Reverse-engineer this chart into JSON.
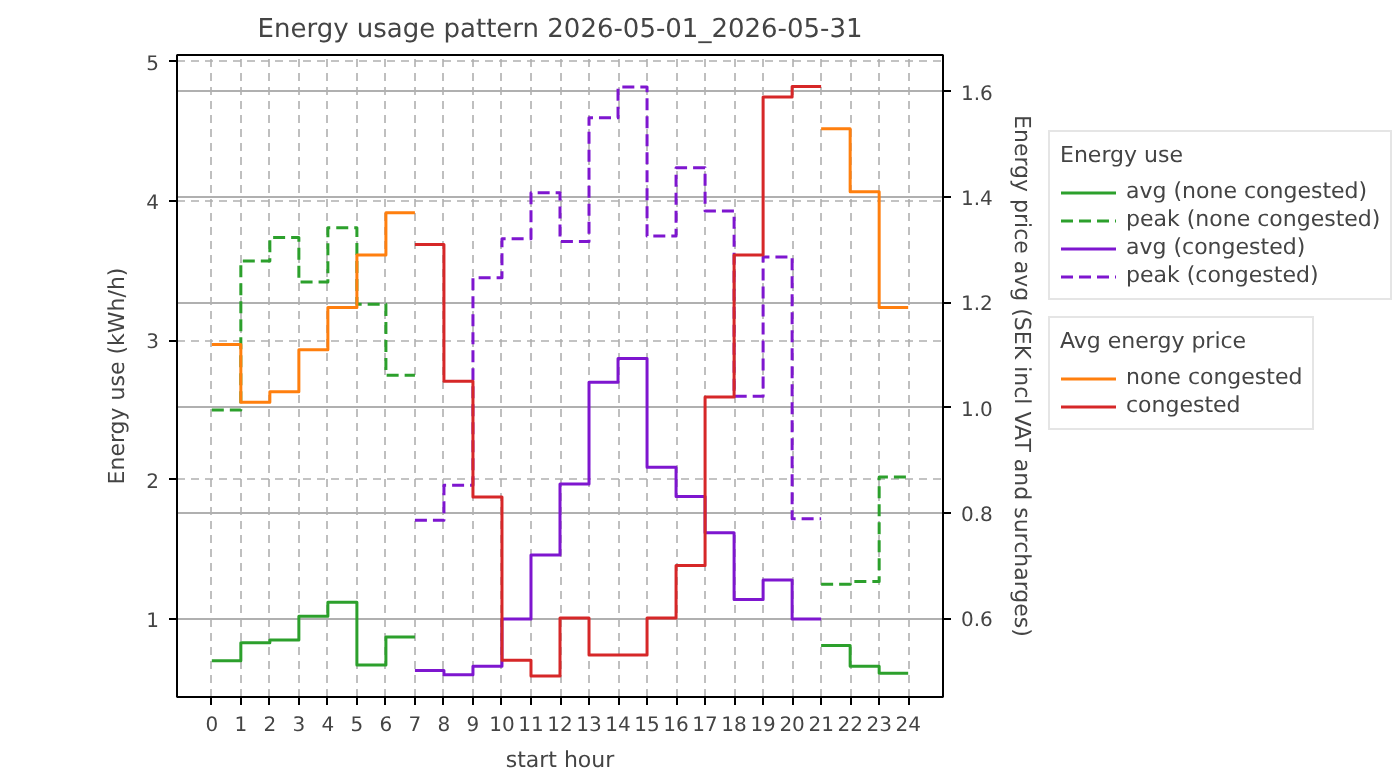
{
  "chart_data": {
    "type": "step",
    "title": "Energy usage pattern 2026-05-01_2026-05-31",
    "xlabel": "start hour",
    "ylabel": "Energy use (kWh/h)",
    "y2label": "Energy price avg (SEK incl VAT and surcharges)",
    "legend_title": [
      "Energy use",
      "Avg energy price"
    ],
    "x": [
      0,
      1,
      2,
      3,
      4,
      5,
      6,
      7,
      8,
      9,
      10,
      11,
      12,
      13,
      14,
      15,
      16,
      17,
      18,
      19,
      20,
      21,
      22,
      23,
      24
    ],
    "series": [
      {
        "name": "avg (none congested)",
        "color": "#2ca02c",
        "line_style": "solid",
        "axis": "y",
        "values": [
          0.7,
          0.83,
          0.85,
          1.02,
          1.12,
          0.67,
          0.87,
          0.87,
          null,
          null,
          null,
          null,
          null,
          null,
          null,
          null,
          null,
          null,
          null,
          null,
          null,
          0.81,
          0.66,
          0.61,
          0.61
        ]
      },
      {
        "name": "peak (none congested)",
        "color": "#2ca02c",
        "line_style": "dashed",
        "axis": "y",
        "values": [
          2.5,
          3.57,
          3.74,
          3.42,
          3.81,
          3.26,
          2.75,
          2.75,
          null,
          null,
          null,
          null,
          null,
          null,
          null,
          null,
          null,
          null,
          null,
          null,
          null,
          1.25,
          1.27,
          2.02,
          2.02
        ]
      },
      {
        "name": "avg (congested)",
        "color": "#7e16cf",
        "line_style": "solid",
        "axis": "y",
        "values": [
          null,
          null,
          null,
          null,
          null,
          null,
          null,
          0.63,
          0.6,
          0.66,
          1.0,
          1.46,
          1.97,
          2.7,
          2.87,
          2.09,
          1.88,
          1.62,
          1.14,
          1.28,
          1.0,
          1.0,
          null,
          null,
          null
        ]
      },
      {
        "name": "peak (congested)",
        "color": "#7e16cf",
        "line_style": "dashed",
        "axis": "y",
        "values": [
          null,
          null,
          null,
          null,
          null,
          null,
          null,
          1.71,
          1.96,
          3.45,
          3.73,
          4.06,
          3.71,
          4.6,
          4.82,
          3.75,
          4.24,
          3.93,
          2.6,
          3.6,
          1.72,
          1.72,
          null,
          null,
          null
        ]
      },
      {
        "name": "none congested",
        "color": "#ff7f0e",
        "line_style": "solid",
        "axis": "y2",
        "values": [
          1.12,
          1.01,
          1.03,
          1.11,
          1.19,
          1.29,
          1.37,
          1.37,
          null,
          null,
          null,
          null,
          null,
          null,
          null,
          null,
          null,
          null,
          null,
          null,
          null,
          1.53,
          1.41,
          1.19,
          1.19
        ]
      },
      {
        "name": "congested",
        "color": "#d62728",
        "line_style": "solid",
        "axis": "y2",
        "values": [
          null,
          null,
          null,
          null,
          null,
          null,
          null,
          1.31,
          1.05,
          0.83,
          0.52,
          0.49,
          0.6,
          0.53,
          0.53,
          0.6,
          0.7,
          1.02,
          1.29,
          1.59,
          1.61,
          1.61,
          null,
          null,
          null
        ]
      }
    ],
    "xlim": [
      -1.2,
      25.2
    ],
    "xticks": [
      0,
      1,
      2,
      3,
      4,
      5,
      6,
      7,
      8,
      9,
      10,
      11,
      12,
      13,
      14,
      15,
      16,
      17,
      18,
      19,
      20,
      21,
      22,
      23,
      24
    ],
    "ylim": [
      0.44,
      5.05
    ],
    "yticks": [
      1,
      2,
      3,
      4,
      5
    ],
    "y2lim": [
      0.45,
      1.67
    ],
    "y2ticks": [
      {
        "value": 0.6,
        "label": "0.6"
      },
      {
        "value": 0.8,
        "label": "0.8"
      },
      {
        "value": 1.0,
        "label": "1.0"
      },
      {
        "value": 1.2,
        "label": "1.2"
      },
      {
        "value": 1.4,
        "label": "1.4"
      },
      {
        "value": 1.6,
        "label": "1.6"
      }
    ],
    "grid": true,
    "legend": "right"
  }
}
